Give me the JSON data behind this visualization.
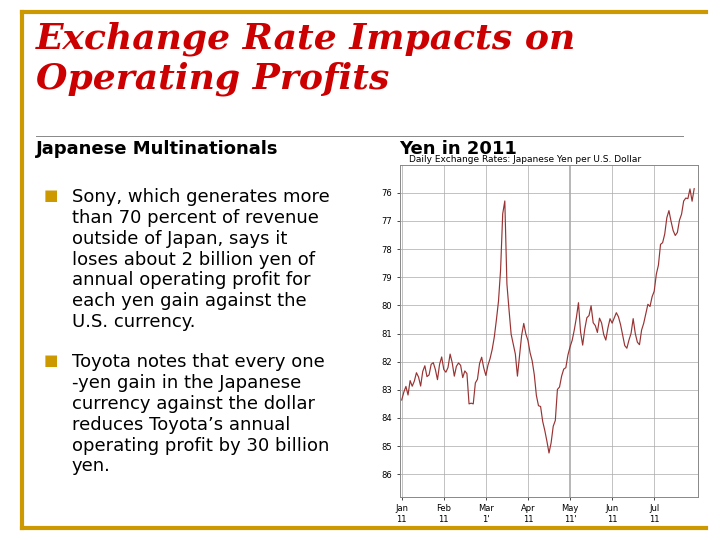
{
  "title_line1": "Exchange Rate Impacts on",
  "title_line2": "Operating Profits",
  "title_color": "#CC0000",
  "title_fontsize": 26,
  "subtitle_left": "Japanese Multinationals",
  "subtitle_right": "Yen in 2011",
  "subtitle_fontsize": 13,
  "bullet1": "Sony, which generates more\nthan 70 percent of revenue\noutside of Japan, says it\nloses about 2 billion yen of\nannual operating profit for\neach yen gain against the\nU.S. currency.",
  "bullet2": "Toyota notes that every one\n-yen gain in the Japanese\ncurrency against the dollar\nreduces Toyota’s annual\noperating profit by 30 billion\nyen.",
  "chart_title": "Daily Exchange Rates: Japanese Yen per U.S. Dollar",
  "chart_title_fontsize": 6.5,
  "border_color": "#CC9900",
  "background_color": "#FFFFFF",
  "text_color": "#000000",
  "bullet_color": "#CC9900",
  "chart_line_color": "#993333",
  "chart_bg_color": "#FFFFFF",
  "body_fontsize": 13,
  "y_ticks": [
    76,
    77,
    78,
    79,
    80,
    81,
    82,
    83,
    84,
    85,
    86
  ],
  "x_tick_labels": [
    "Jan\n11",
    "Feb\n11",
    "Mar\n1'",
    "Apr\n11",
    "May\n11'",
    "Jun\n11",
    "Jul\n11"
  ],
  "chart_grid_color": "#AAAAAA",
  "thick_vline_pos": 80
}
